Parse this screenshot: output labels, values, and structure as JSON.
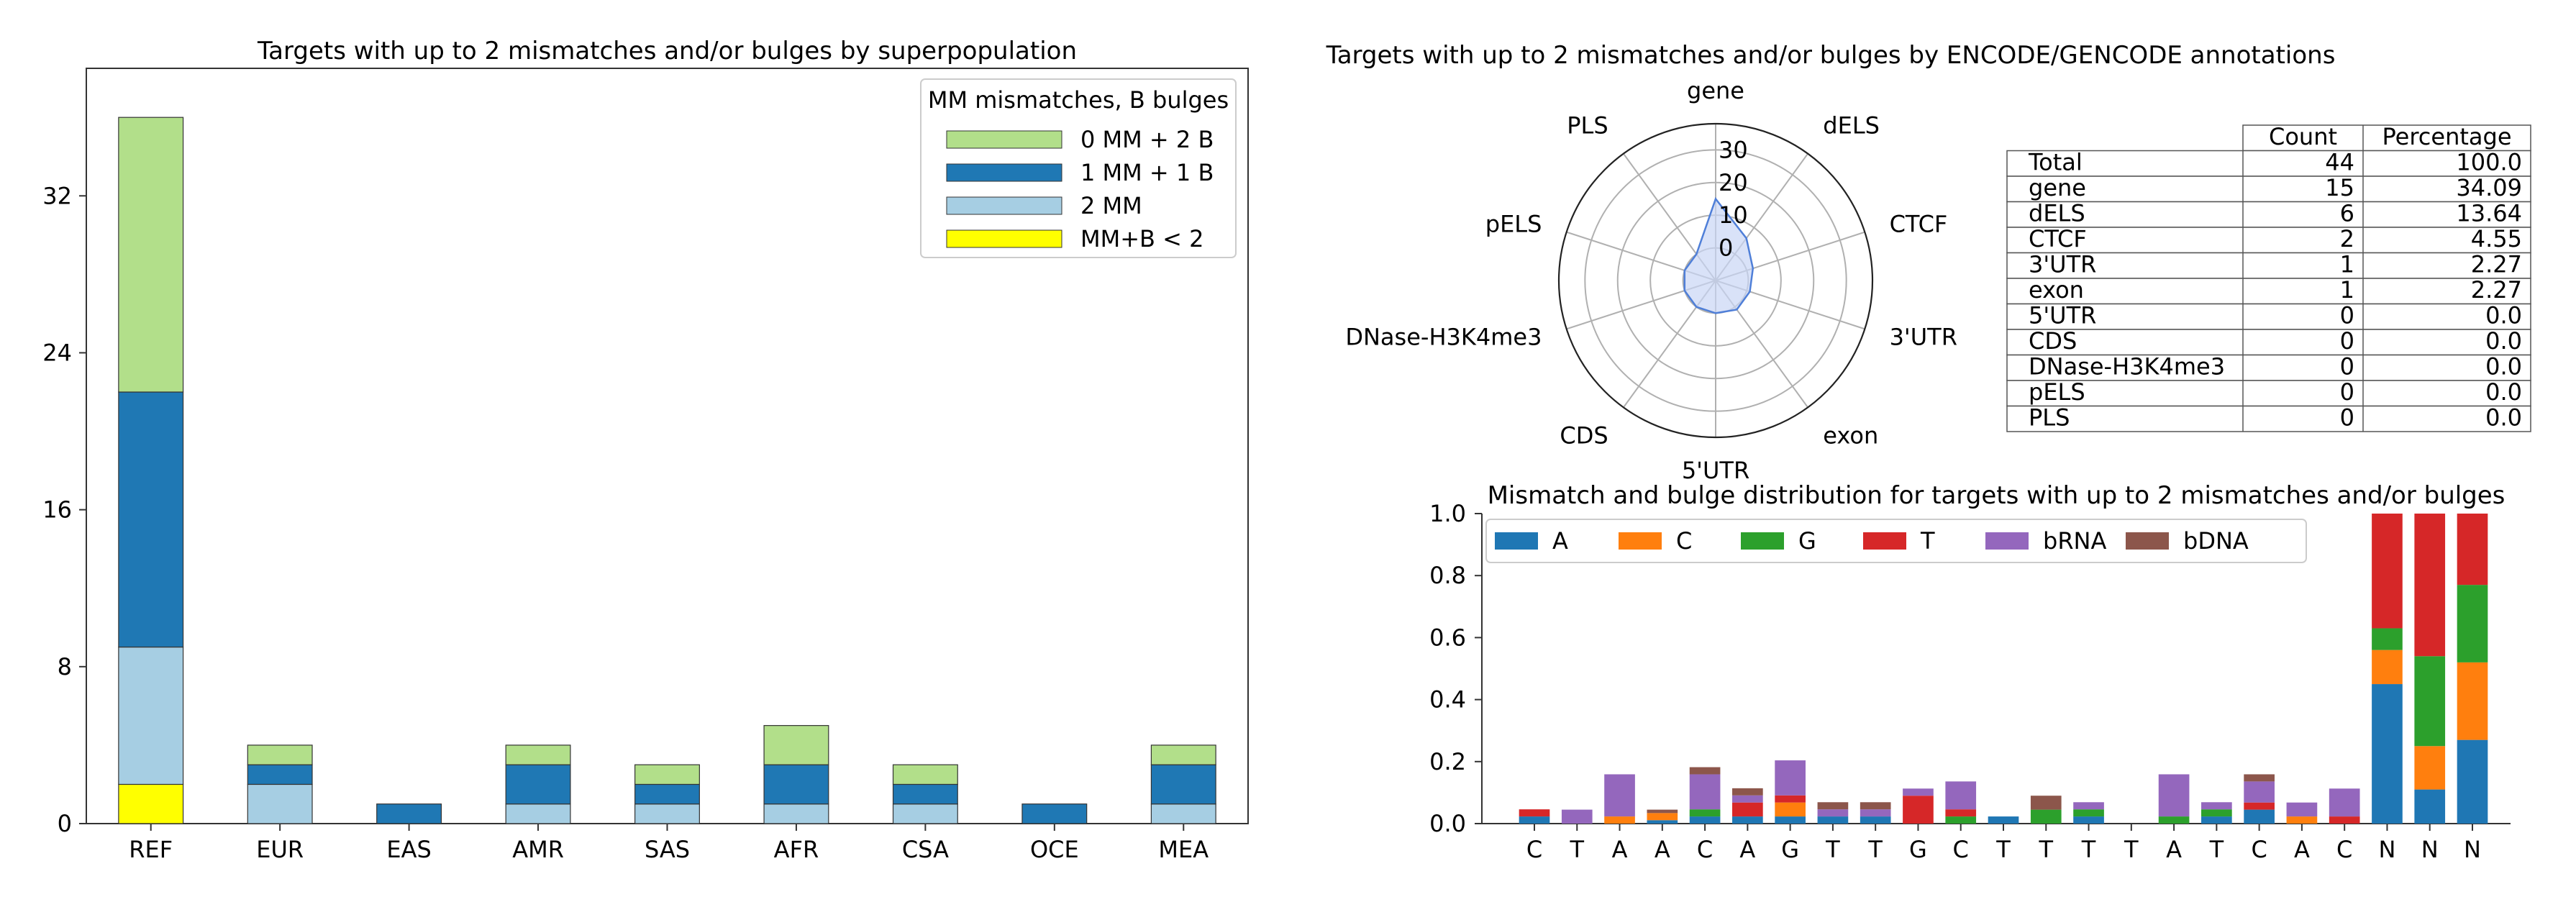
{
  "colors": {
    "mm0b2": "#b2df8a",
    "mm1b1": "#1f78b4",
    "mm2": "#a6cee3",
    "lt2": "#ffff00",
    "A": "#1f77b4",
    "C": "#ff7f0e",
    "G": "#2ca02c",
    "T": "#d62728",
    "bRNA": "#9467bd",
    "bDNA": "#8c564b",
    "radar_line": "#4f7fd8",
    "radar_fill": "#c9d6f5"
  },
  "chart_data": [
    {
      "type": "bar",
      "title": "Targets with up to 2 mismatches and/or bulges by superpopulation",
      "categories": [
        "REF",
        "EUR",
        "EAS",
        "AMR",
        "SAS",
        "AFR",
        "CSA",
        "OCE",
        "MEA"
      ],
      "stacked": true,
      "ylim": [
        0,
        38.5
      ],
      "yticks": [
        0,
        8,
        16,
        24,
        32
      ],
      "legend_title": "MM mismatches, B bulges",
      "legend_position": "top-right",
      "series": [
        {
          "name": "MM+B < 2",
          "color_key": "lt2",
          "values": [
            2,
            0,
            0,
            0,
            0,
            0,
            0,
            0,
            0
          ]
        },
        {
          "name": "2 MM",
          "color_key": "mm2",
          "values": [
            7,
            2,
            0,
            1,
            1,
            1,
            1,
            0,
            1
          ]
        },
        {
          "name": "1 MM + 1 B",
          "color_key": "mm1b1",
          "values": [
            13,
            1,
            1,
            2,
            1,
            2,
            1,
            1,
            2
          ]
        },
        {
          "name": "0 MM + 2 B",
          "color_key": "mm0b2",
          "values": [
            14,
            1,
            0,
            1,
            1,
            2,
            1,
            0,
            1
          ]
        }
      ],
      "legend_order": [
        "0 MM + 2 B",
        "1 MM + 1 B",
        "2 MM",
        "MM+B < 2"
      ]
    },
    {
      "type": "radar",
      "title": "Targets with up to 2 mismatches and/or bulges by ENCODE/GENCODE annotations",
      "axes": [
        "gene",
        "dELS",
        "CTCF",
        "3'UTR",
        "exon",
        "5'UTR",
        "CDS",
        "DNase-H3K4me3",
        "pELS",
        "PLS"
      ],
      "values": [
        15,
        6,
        2,
        1,
        1,
        0,
        0,
        0,
        0,
        0
      ],
      "r_ticks": [
        "0",
        "10",
        "20",
        "30"
      ],
      "r_min": -10,
      "r_max": 38
    },
    {
      "type": "table",
      "columns": [
        "",
        "Count",
        "Percentage"
      ],
      "rows": [
        [
          "Total",
          "44",
          "100.0"
        ],
        [
          "gene",
          "15",
          "34.09"
        ],
        [
          "dELS",
          "6",
          "13.64"
        ],
        [
          "CTCF",
          "2",
          "4.55"
        ],
        [
          "3'UTR",
          "1",
          "2.27"
        ],
        [
          "exon",
          "1",
          "2.27"
        ],
        [
          "5'UTR",
          "0",
          "0.0"
        ],
        [
          "CDS",
          "0",
          "0.0"
        ],
        [
          "DNase-H3K4me3",
          "0",
          "0.0"
        ],
        [
          "pELS",
          "0",
          "0.0"
        ],
        [
          "PLS",
          "0",
          "0.0"
        ]
      ]
    },
    {
      "type": "bar",
      "title": "Mismatch and bulge distribution for targets with up to 2 mismatches and/or bulges",
      "stacked": true,
      "categories": [
        "C",
        "T",
        "A",
        "A",
        "C",
        "A",
        "G",
        "T",
        "T",
        "G",
        "C",
        "T",
        "T",
        "T",
        "T",
        "A",
        "T",
        "C",
        "A",
        "C",
        "N",
        "N",
        "N"
      ],
      "ylim": [
        0,
        1.0
      ],
      "yticks": [
        "0.0",
        "0.2",
        "0.4",
        "0.6",
        "0.8",
        "1.0"
      ],
      "legend_position": "top",
      "series": [
        {
          "name": "A",
          "color_key": "A",
          "values": [
            0.023,
            0,
            0,
            0.011,
            0.023,
            0.023,
            0.023,
            0.023,
            0.023,
            0,
            0,
            0.023,
            0,
            0.023,
            0,
            0,
            0.023,
            0.045,
            0,
            0,
            0.45,
            0.11,
            0.27
          ]
        },
        {
          "name": "C",
          "color_key": "C",
          "values": [
            0,
            0,
            0.023,
            0.023,
            0,
            0,
            0.045,
            0,
            0,
            0,
            0,
            0,
            0,
            0,
            0,
            0,
            0,
            0,
            0.023,
            0,
            0.11,
            0.14,
            0.25
          ]
        },
        {
          "name": "G",
          "color_key": "G",
          "values": [
            0,
            0,
            0,
            0,
            0.023,
            0,
            0,
            0,
            0,
            0,
            0.023,
            0,
            0.045,
            0.023,
            0,
            0.023,
            0.023,
            0,
            0,
            0,
            0.07,
            0.29,
            0.25
          ]
        },
        {
          "name": "T",
          "color_key": "T",
          "values": [
            0.023,
            0,
            0,
            0,
            0,
            0.045,
            0.023,
            0,
            0,
            0.09,
            0.023,
            0,
            0,
            0,
            0,
            0,
            0,
            0.023,
            0,
            0.023,
            0.37,
            0.46,
            0.23
          ]
        },
        {
          "name": "bRNA",
          "color_key": "bRNA",
          "values": [
            0,
            0.045,
            0.136,
            0,
            0.113,
            0.023,
            0.113,
            0.023,
            0.023,
            0.023,
            0.09,
            0,
            0,
            0.023,
            0,
            0.136,
            0.023,
            0.068,
            0.045,
            0.09,
            0,
            0,
            0
          ]
        },
        {
          "name": "bDNA",
          "color_key": "bDNA",
          "values": [
            0,
            0,
            0,
            0.011,
            0.023,
            0.023,
            0,
            0.023,
            0.023,
            0,
            0,
            0,
            0.045,
            0,
            0,
            0,
            0,
            0.023,
            0,
            0,
            0,
            0,
            0
          ]
        }
      ]
    }
  ]
}
